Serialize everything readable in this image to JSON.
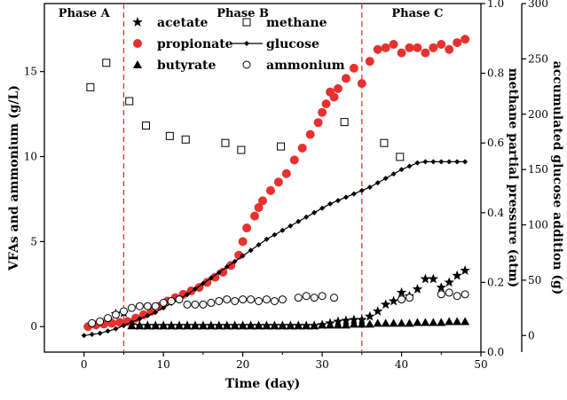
{
  "chart_data": {
    "type": "scatter",
    "title": "",
    "xlabel": "Time (day)",
    "ylabel_left": "VFAs and ammonium (g/L)",
    "ylabel_right1": "methane partial pressure (atm)",
    "ylabel_right2": "accumulated glucose addition (g)",
    "xlim": [
      -5,
      50
    ],
    "ylim_left": [
      -1.5,
      19
    ],
    "ylim_right1": [
      0.0,
      1.0
    ],
    "ylim_right2": [
      -15,
      300
    ],
    "x_ticks": [
      0,
      10,
      20,
      30,
      40,
      50
    ],
    "y_ticks_left": [
      0,
      5,
      10,
      15
    ],
    "y_ticks_right1": [
      0.0,
      0.2,
      0.4,
      0.6,
      0.8,
      1.0
    ],
    "y_ticks_right1_labels": [
      "0.0",
      "0.2",
      "0.4",
      "0.6",
      "0.8",
      "1.0"
    ],
    "y_ticks_right2": [
      0,
      50,
      100,
      150,
      200,
      250,
      300
    ],
    "phase_boundaries": [
      5,
      35
    ],
    "phase_labels": [
      {
        "label": "Phase A",
        "x": 0
      },
      {
        "label": "Phase B",
        "x": 20
      },
      {
        "label": "Phase C",
        "x": 42
      }
    ],
    "legend": [
      {
        "name": "acetate",
        "marker": "star"
      },
      {
        "name": "methane",
        "marker": "open-square"
      },
      {
        "name": "propionate",
        "marker": "red-circle"
      },
      {
        "name": "glucose",
        "marker": "line-diamond"
      },
      {
        "name": "butyrate",
        "marker": "triangle"
      },
      {
        "name": "ammonium",
        "marker": "open-circle"
      }
    ],
    "legend_position": "top-center",
    "grid": false,
    "colors": {
      "propionate": "#e8312f",
      "phase_line": "#e8312f",
      "black": "#000000"
    },
    "series": [
      {
        "name": "acetate",
        "axis": "left",
        "marker": "star",
        "x": [
          1,
          2,
          3,
          4,
          5,
          6,
          7,
          8,
          9,
          10,
          11,
          12,
          13,
          14,
          15,
          16,
          17,
          18,
          19,
          20,
          21,
          22,
          23,
          24,
          25,
          26,
          27,
          28,
          29,
          30,
          31,
          32,
          33,
          34,
          35,
          36,
          37,
          38,
          39,
          40,
          41,
          42,
          43,
          44,
          45,
          46,
          47,
          48
        ],
        "y": [
          0.1,
          0.2,
          0.4,
          0.75,
          0.8,
          0.1,
          0.05,
          0.05,
          0.05,
          0.05,
          0.05,
          0.05,
          0.05,
          0.05,
          0.05,
          0.05,
          0.05,
          0.05,
          0.05,
          0.05,
          0.05,
          0.05,
          0.05,
          0.05,
          0.05,
          0.05,
          0.05,
          0.05,
          0.05,
          0.1,
          0.2,
          0.3,
          0.35,
          0.4,
          0.4,
          0.6,
          0.9,
          1.3,
          1.5,
          2.0,
          1.8,
          2.2,
          2.8,
          2.8,
          2.3,
          2.6,
          3.0,
          3.3
        ]
      },
      {
        "name": "methane",
        "axis": "right1",
        "marker": "open-square",
        "x": [
          0.8,
          2.8,
          5.7,
          7.8,
          10.8,
          12.8,
          17.8,
          19.8,
          24.8,
          32.8,
          37.8,
          39.8
        ],
        "y": [
          0.76,
          0.83,
          0.72,
          0.65,
          0.62,
          0.61,
          0.6,
          0.58,
          0.59,
          0.66,
          0.6,
          0.56
        ]
      },
      {
        "name": "propionate",
        "axis": "left",
        "marker": "red-circle",
        "x": [
          0.5,
          1.5,
          2.5,
          3.5,
          4.5,
          5.5,
          6.5,
          7.5,
          8.5,
          9.5,
          10.5,
          11.5,
          12.5,
          13.5,
          14.5,
          15.5,
          16.5,
          17.5,
          18.5,
          19.5,
          20,
          20.5,
          21.5,
          22,
          22.5,
          23.5,
          24.5,
          25.5,
          26.5,
          27.5,
          28.5,
          29.5,
          30,
          30.5,
          31.5,
          31,
          32,
          33,
          34,
          35,
          36,
          37,
          38,
          39,
          40,
          41,
          42,
          43,
          44,
          45,
          46,
          47,
          48
        ],
        "y": [
          0.0,
          0.1,
          0.15,
          0.2,
          0.25,
          0.3,
          0.5,
          0.7,
          0.9,
          1.2,
          1.5,
          1.7,
          1.9,
          2.1,
          2.3,
          2.6,
          2.9,
          3.2,
          3.6,
          4.2,
          5.0,
          5.8,
          6.5,
          7.0,
          7.4,
          8.0,
          8.5,
          9.0,
          9.8,
          10.5,
          11.3,
          12.0,
          12.6,
          13.1,
          13.5,
          13.8,
          14.0,
          14.6,
          15.2,
          14.3,
          15.6,
          16.3,
          16.4,
          16.6,
          16.1,
          16.4,
          16.4,
          16.1,
          16.4,
          16.6,
          16.3,
          16.7,
          16.9
        ]
      },
      {
        "name": "glucose",
        "axis": "right2",
        "marker": "line-diamond",
        "x": [
          0,
          1,
          2,
          3,
          4,
          5,
          6,
          7,
          8,
          9,
          10,
          11,
          12,
          13,
          14,
          15,
          16,
          17,
          18,
          19,
          20,
          21,
          22,
          23,
          24,
          25,
          26,
          27,
          28,
          29,
          30,
          31,
          32,
          33,
          34,
          35,
          36,
          37,
          38,
          39,
          40,
          41,
          42,
          43,
          44,
          45,
          46,
          47,
          48
        ],
        "y": [
          0,
          1,
          2,
          4,
          6,
          9,
          12,
          15,
          18,
          21,
          25,
          29,
          33,
          37,
          42,
          47,
          52,
          57,
          62,
          67,
          72,
          77,
          82,
          87,
          91,
          95,
          99,
          103,
          107,
          111,
          115,
          119,
          122,
          125,
          128,
          131,
          134,
          138,
          142,
          146,
          150,
          153,
          156,
          157,
          157,
          157,
          157,
          157,
          157
        ]
      },
      {
        "name": "butyrate",
        "axis": "left",
        "marker": "triangle",
        "x": [
          6,
          7,
          8,
          9,
          10,
          11,
          12,
          13,
          14,
          15,
          16,
          17,
          18,
          19,
          20,
          21,
          22,
          23,
          24,
          25,
          26,
          27,
          28,
          29,
          30,
          31,
          32,
          33,
          34,
          35,
          36,
          37,
          38,
          39,
          40,
          41,
          42,
          43,
          44,
          45,
          46,
          47,
          48
        ],
        "y": [
          0.05,
          0.05,
          0.05,
          0.05,
          0.05,
          0.05,
          0.05,
          0.05,
          0.05,
          0.05,
          0.05,
          0.05,
          0.05,
          0.05,
          0.05,
          0.05,
          0.05,
          0.05,
          0.05,
          0.05,
          0.05,
          0.05,
          0.05,
          0.05,
          0.1,
          0.1,
          0.1,
          0.1,
          0.15,
          0.15,
          0.15,
          0.2,
          0.2,
          0.2,
          0.2,
          0.2,
          0.25,
          0.25,
          0.25,
          0.25,
          0.3,
          0.3,
          0.3
        ]
      },
      {
        "name": "ammonium",
        "axis": "left",
        "marker": "open-circle",
        "x": [
          1,
          2,
          3,
          4,
          5,
          6,
          7,
          8,
          9,
          10,
          11,
          12,
          13,
          14,
          15,
          16,
          17,
          18,
          19,
          20,
          21,
          22,
          23,
          24,
          25,
          27,
          28,
          29,
          30,
          31.5,
          40,
          41,
          45,
          46,
          47,
          48
        ],
        "y": [
          0.2,
          0.3,
          0.5,
          0.7,
          0.9,
          1.1,
          1.2,
          1.2,
          1.2,
          1.4,
          1.5,
          1.6,
          1.3,
          1.3,
          1.3,
          1.4,
          1.5,
          1.6,
          1.5,
          1.6,
          1.6,
          1.5,
          1.6,
          1.5,
          1.6,
          1.7,
          1.8,
          1.7,
          1.8,
          1.7,
          1.6,
          1.7,
          1.9,
          2.0,
          1.8,
          1.9
        ]
      }
    ]
  }
}
